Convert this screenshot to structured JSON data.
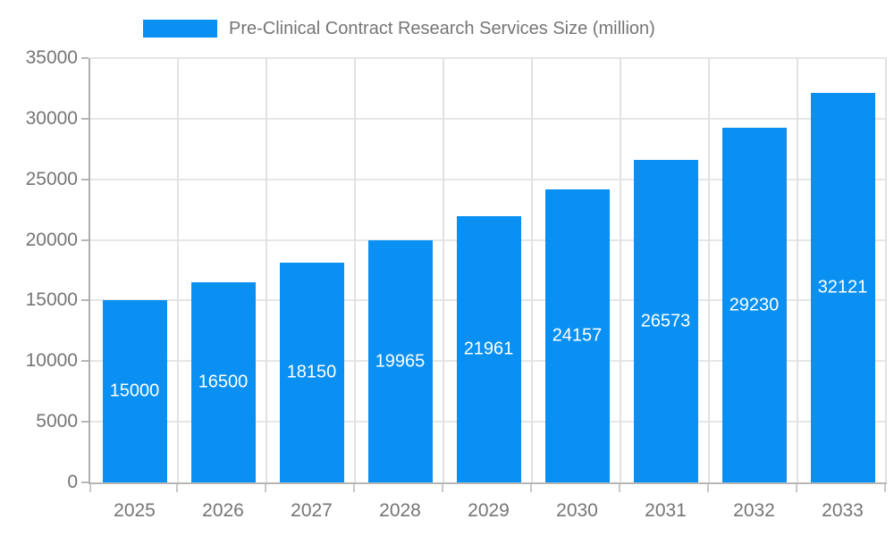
{
  "chart_data": {
    "type": "bar",
    "title": "Pre-Clinical Contract Research Services Size (million)",
    "categories": [
      "2025",
      "2026",
      "2027",
      "2028",
      "2029",
      "2030",
      "2031",
      "2032",
      "2033"
    ],
    "values": [
      15000,
      16500,
      18150,
      19965,
      21961,
      24157,
      26573,
      29230,
      32121
    ],
    "bar_labels": [
      "15000",
      "16500",
      "18150",
      "19965",
      "21961",
      "24157",
      "26573",
      "29230",
      "32121"
    ],
    "xlabel": "",
    "ylabel": "",
    "ylim": [
      0,
      35000
    ],
    "ytick_step": 5000,
    "ytick_labels": [
      "0",
      "5000",
      "10000",
      "15000",
      "20000",
      "25000",
      "30000",
      "35000"
    ],
    "grid": true,
    "legend_position": "top-center",
    "bar_color": "#0990f2",
    "bar_label_color": "#ffffff",
    "axis_text_color": "#757575",
    "gridline_color": "#e6e6e6",
    "axis_line_color": "#b0b0b0"
  }
}
